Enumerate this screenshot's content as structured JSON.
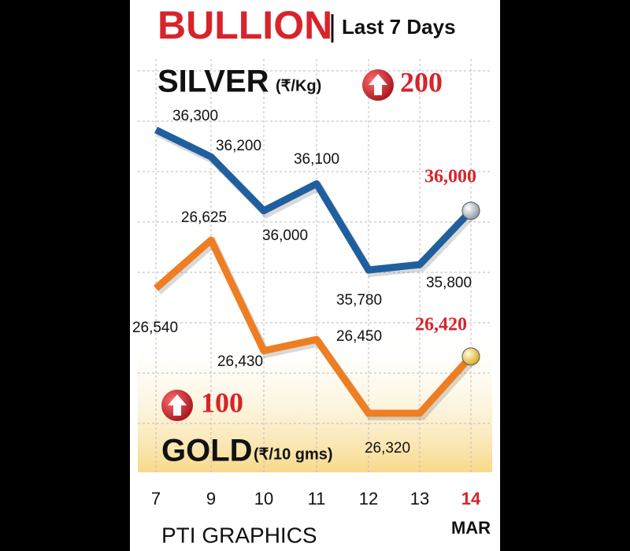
{
  "chart_data": {
    "type": "line",
    "title": "BULLION",
    "subtitle": "Last 7 Days",
    "categories": [
      "7",
      "9",
      "10",
      "11",
      "12",
      "13",
      "14"
    ],
    "month_label": "MAR",
    "source": "PTI GRAPHICS",
    "grid": true,
    "series": [
      {
        "name": "SILVER",
        "unit": "(₹/Kg)",
        "change": 200,
        "color": "#1f5f9e",
        "values": [
          36300,
          36200,
          36000,
          36100,
          35780,
          35800,
          36000
        ],
        "value_labels": [
          "36,300",
          "36,200",
          "36,000",
          "36,100",
          "35,780",
          "35,800",
          "36,000"
        ]
      },
      {
        "name": "GOLD",
        "unit": "(₹/10 gms)",
        "change": 100,
        "color": "#ef7d22",
        "values": [
          26540,
          26625,
          26430,
          26450,
          26320,
          26320,
          26420
        ],
        "value_labels": [
          "26,540",
          "26,625",
          "26,430",
          "26,450",
          "26,320",
          null,
          "26,420"
        ]
      }
    ]
  }
}
